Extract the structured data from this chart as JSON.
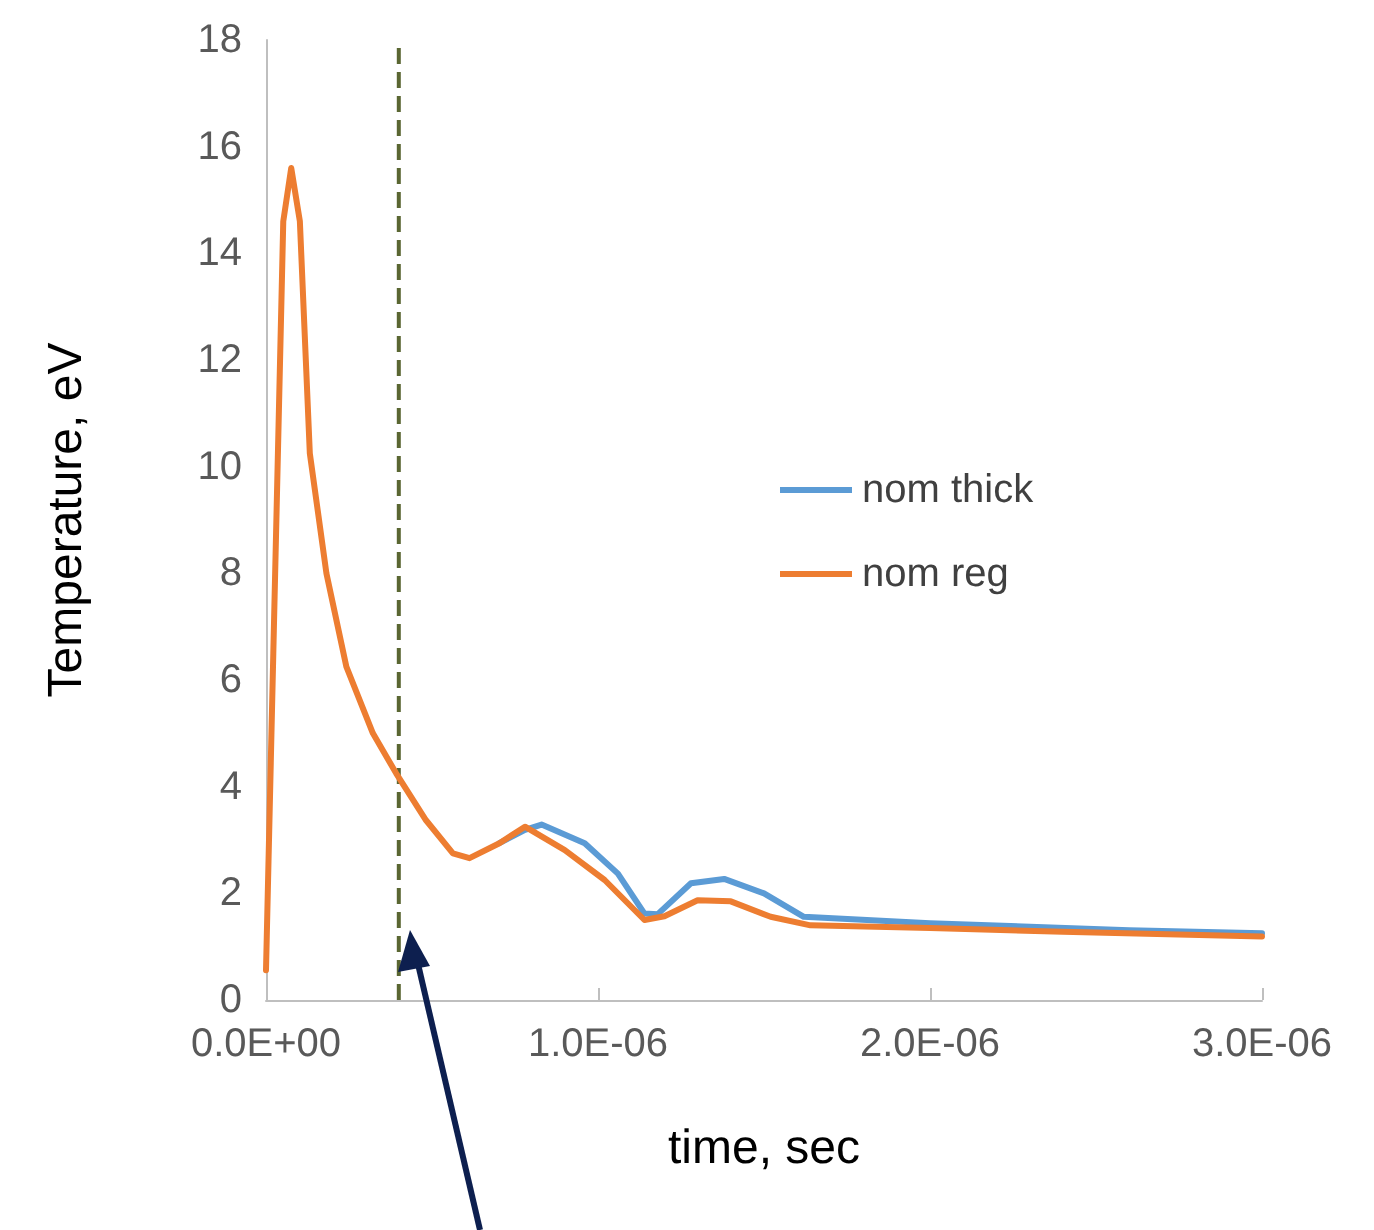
{
  "chart_data": {
    "type": "line",
    "xlabel": "time, sec",
    "ylabel": "Temperature, eV",
    "xlim": [
      0,
      3e-06
    ],
    "xticks": [
      {
        "value": 0,
        "label": "0.0E+00"
      },
      {
        "value": 1e-06,
        "label": "1.0E-06"
      },
      {
        "value": 2e-06,
        "label": "2.0E-06"
      },
      {
        "value": 3e-06,
        "label": "3.0E-06"
      }
    ],
    "ylim": [
      0,
      18
    ],
    "yticks": [
      0,
      2,
      4,
      6,
      8,
      10,
      12,
      14,
      16,
      18
    ],
    "grid": false,
    "legend": "center right",
    "marker": "none",
    "line_style": "solid",
    "ref_lines": [
      {
        "axis": "x",
        "value": 4e-07,
        "label": null,
        "color": "#5a6632",
        "line_style": "dashed"
      }
    ],
    "series": [
      {
        "name": "nom thick",
        "color": "#5b9bd5",
        "x": [
          7.03e-07,
          7.8e-07,
          8.3e-07,
          9.6e-07,
          1.06e-06,
          1.14e-06,
          1.18e-06,
          1.28e-06,
          1.38e-06,
          1.5e-06,
          1.62e-06,
          2e-06,
          2.6e-06,
          3e-06
        ],
        "values": [
          2.94,
          3.19,
          3.29,
          2.94,
          2.37,
          1.62,
          1.61,
          2.19,
          2.27,
          2.0,
          1.56,
          1.44,
          1.31,
          1.25
        ]
      },
      {
        "name": "nom reg",
        "color": "#ed7d31",
        "x": [
          0,
          2.2e-08,
          5.2e-08,
          7.6e-08,
          1.02e-07,
          1.32e-07,
          1.82e-07,
          2.42e-07,
          3.22e-07,
          3.92e-07,
          4.82e-07,
          5.63e-07,
          6.13e-07,
          7.03e-07,
          7.8e-07,
          9e-07,
          1.02e-06,
          1.14e-06,
          1.2e-06,
          1.3e-06,
          1.4e-06,
          1.52e-06,
          1.64e-06,
          2e-06,
          2.4e-06,
          3e-06
        ],
        "values": [
          0.56,
          6.5,
          14.6,
          15.6,
          14.6,
          10.25,
          8.0,
          6.25,
          5.0,
          4.25,
          3.37,
          2.75,
          2.66,
          2.94,
          3.25,
          2.81,
          2.25,
          1.5,
          1.57,
          1.87,
          1.85,
          1.56,
          1.4,
          1.35,
          1.28,
          1.19
        ]
      }
    ]
  }
}
